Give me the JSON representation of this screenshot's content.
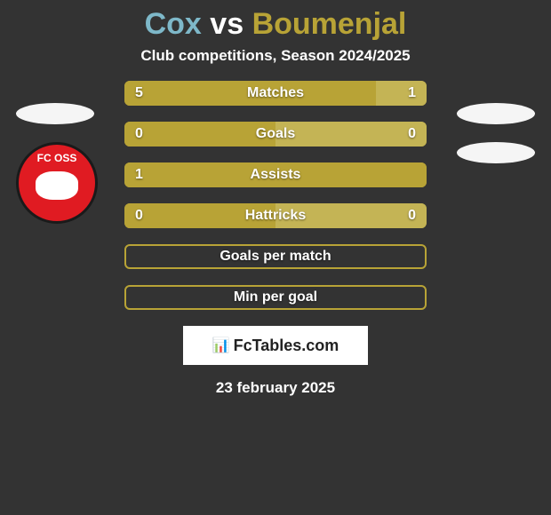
{
  "title": {
    "player1": "Cox",
    "vs": "vs",
    "player2": "Boumenjal",
    "color1": "#7eb8c9",
    "color2": "#b8a336"
  },
  "subtitle": "Club competitions, Season 2024/2025",
  "colors": {
    "background": "#333333",
    "bar_border": "#b8a336",
    "fill_left": "#b8a336",
    "fill_right": "#c4b455",
    "ellipse": "#f5f5f5",
    "badge_red": "#e01b22",
    "white": "#ffffff"
  },
  "club_badge_text": "FC OSS",
  "bars": [
    {
      "label": "Matches",
      "left_val": "5",
      "right_val": "1",
      "left_pct": 83.3,
      "right_pct": 16.7,
      "show_vals": true
    },
    {
      "label": "Goals",
      "left_val": "0",
      "right_val": "0",
      "left_pct": 50,
      "right_pct": 50,
      "show_vals": true
    },
    {
      "label": "Assists",
      "left_val": "1",
      "right_val": "",
      "left_pct": 100,
      "right_pct": 0,
      "show_vals": true
    },
    {
      "label": "Hattricks",
      "left_val": "0",
      "right_val": "0",
      "left_pct": 50,
      "right_pct": 50,
      "show_vals": true
    },
    {
      "label": "Goals per match",
      "left_val": "",
      "right_val": "",
      "left_pct": 0,
      "right_pct": 0,
      "show_vals": false
    },
    {
      "label": "Min per goal",
      "left_val": "",
      "right_val": "",
      "left_pct": 0,
      "right_pct": 0,
      "show_vals": false
    }
  ],
  "footer": {
    "site": "FcTables.com",
    "date": "23 february 2025"
  }
}
